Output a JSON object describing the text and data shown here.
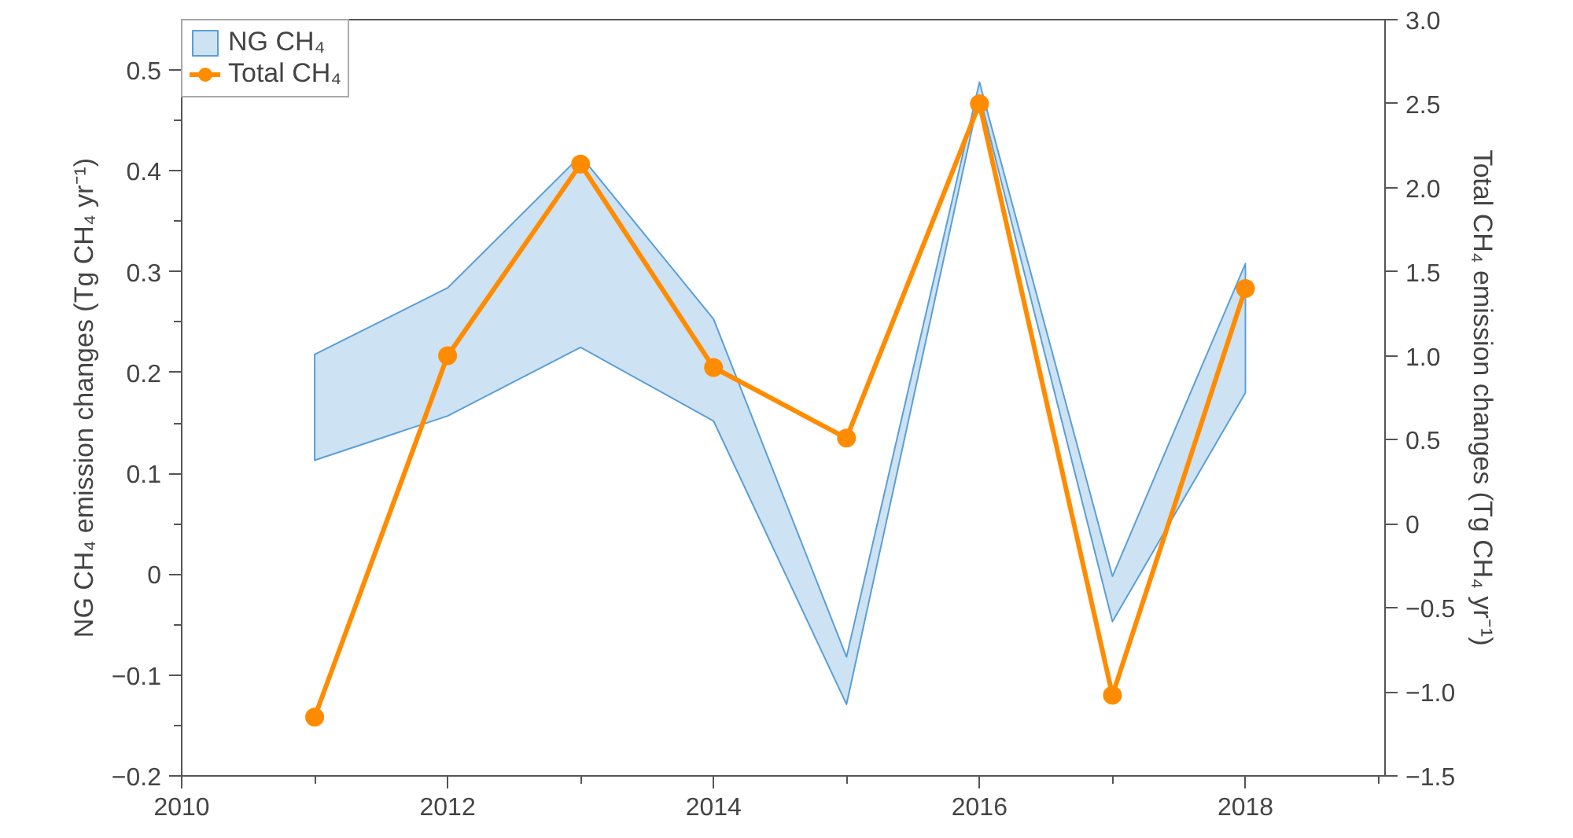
{
  "chart_data": {
    "type": "line",
    "xlabel": null,
    "ylabel": "NG CH₄ emission changes (Tg CH₄ yr⁻¹)",
    "y2label": "Total CH₄ emission changes (Tg CH₄ yr⁻¹)",
    "x": [
      2011,
      2012,
      2013,
      2014,
      2015,
      2016,
      2017,
      2018
    ],
    "series": [
      {
        "name": "NG CH₄",
        "type": "area",
        "color": "#5a9fd6",
        "values": [
          null,
          null,
          null,
          null,
          null,
          null,
          null,
          null
        ],
        "upper": [
          0.218,
          0.284,
          0.415,
          0.253,
          -0.082,
          0.488,
          -0.002,
          0.308
        ],
        "lower": [
          0.113,
          0.157,
          0.225,
          0.152,
          -0.129,
          0.475,
          -0.047,
          0.18
        ]
      },
      {
        "name": "Total CH₄",
        "axis": "y2",
        "color": "#ff8c00",
        "marker": "circle",
        "values": [
          -1.15,
          1.0,
          2.14,
          0.93,
          0.51,
          2.5,
          -1.02,
          1.4
        ]
      }
    ],
    "xlim": [
      2010,
      2019.05
    ],
    "xticks": [
      2010,
      {
        "value": 2011,
        "label": null
      },
      2012,
      {
        "value": 2013,
        "label": null
      },
      2014,
      {
        "value": 2015,
        "label": null
      },
      2016,
      {
        "value": 2017,
        "label": null
      },
      2018,
      {
        "value": 2019,
        "label": null
      }
    ],
    "ylim": [
      -0.2,
      0.55
    ],
    "yticks": [
      {
        "value": -0.2,
        "label": "−0.2"
      },
      {
        "value": -0.15,
        "label": null
      },
      {
        "value": -0.1,
        "label": "−0.1"
      },
      {
        "value": -0.05,
        "label": null
      },
      0,
      {
        "value": 0.05,
        "label": null
      },
      0.1,
      {
        "value": 0.15,
        "label": null
      },
      0.2,
      {
        "value": 0.25,
        "label": null
      },
      0.3,
      {
        "value": 0.35,
        "label": null
      },
      0.4,
      {
        "value": 0.45,
        "label": null
      },
      0.5
    ],
    "y2lim": [
      -1.5,
      3.0
    ],
    "y2ticks": [
      {
        "value": -1.5,
        "label": "−1.5"
      },
      {
        "value": -1.0,
        "label": "−1.0"
      },
      {
        "value": -0.5,
        "label": "−0.5"
      },
      0,
      0.5,
      {
        "value": 1.0,
        "label": "1.0"
      },
      1.5,
      {
        "value": 2.0,
        "label": "2.0"
      },
      2.5,
      {
        "value": 3.0,
        "label": "3.0"
      }
    ],
    "grid": false,
    "legend": "top left"
  }
}
